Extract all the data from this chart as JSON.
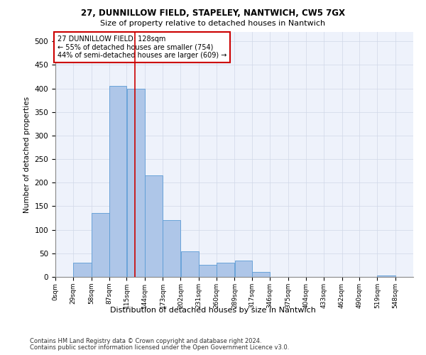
{
  "title1": "27, DUNNILLOW FIELD, STAPELEY, NANTWICH, CW5 7GX",
  "title2": "Size of property relative to detached houses in Nantwich",
  "xlabel": "Distribution of detached houses by size in Nantwich",
  "ylabel": "Number of detached properties",
  "bin_edges": [
    0,
    29,
    58,
    87,
    115,
    144,
    173,
    202,
    231,
    260,
    289,
    317,
    346,
    375,
    404,
    433,
    462,
    490,
    519,
    548,
    577
  ],
  "bar_heights": [
    0,
    30,
    135,
    405,
    400,
    215,
    120,
    55,
    25,
    30,
    35,
    10,
    0,
    0,
    0,
    0,
    0,
    0,
    3,
    0
  ],
  "bar_color": "#aec6e8",
  "bar_edge_color": "#5b9bd5",
  "property_size": 128,
  "annotation_box_text": "27 DUNNILLOW FIELD: 128sqm\n← 55% of detached houses are smaller (754)\n44% of semi-detached houses are larger (609) →",
  "annotation_box_color": "#ffffff",
  "annotation_box_edge_color": "#cc0000",
  "ylim": [
    0,
    520
  ],
  "yticks": [
    0,
    50,
    100,
    150,
    200,
    250,
    300,
    350,
    400,
    450,
    500
  ],
  "grid_color": "#d0d8e8",
  "background_color": "#eef2fb",
  "footer1": "Contains HM Land Registry data © Crown copyright and database right 2024.",
  "footer2": "Contains public sector information licensed under the Open Government Licence v3.0."
}
